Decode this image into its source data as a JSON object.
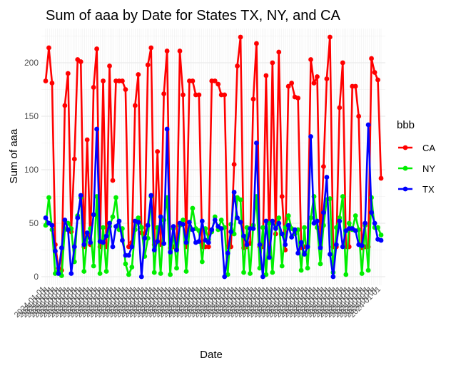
{
  "chart_data": {
    "type": "line",
    "title": "Sum of aaa by Date for States TX, NY, and CA",
    "xlabel": "Date",
    "ylabel": "Sum of aaa",
    "ylim": [
      -8,
      232
    ],
    "yticks": [
      0,
      50,
      100,
      150,
      200
    ],
    "x_tick_text": "2024-01-01",
    "x_count": 173,
    "grid": true,
    "legend": {
      "title": "bbb",
      "position": "right"
    },
    "colors": {
      "CA": "#ff0000",
      "NY": "#00ee00",
      "TX": "#0000ff"
    },
    "series": [
      {
        "name": "CA",
        "values": [
          183,
          214,
          181,
          30,
          8,
          6,
          160,
          190,
          42,
          110,
          203,
          201,
          28,
          128,
          30,
          177,
          213,
          28,
          183,
          28,
          197,
          90,
          183,
          183,
          183,
          175,
          28,
          32,
          160,
          189,
          41,
          40,
          198,
          214,
          30,
          117,
          30,
          171,
          211,
          27,
          28,
          28,
          211,
          170,
          28,
          183,
          183,
          170,
          170,
          28,
          28,
          28,
          183,
          183,
          180,
          170,
          170,
          28,
          28,
          105,
          197,
          224,
          27,
          28,
          31,
          166,
          218,
          28,
          28,
          188,
          28,
          200,
          40,
          210,
          75,
          25,
          178,
          181,
          168,
          167,
          27,
          28,
          28,
          203,
          181,
          187,
          28,
          103,
          185,
          224,
          28,
          28,
          158,
          200,
          28,
          28,
          178,
          178,
          150,
          27,
          28,
          28,
          204,
          191,
          184,
          92
        ]
      },
      {
        "name": "NY",
        "values": [
          48,
          74,
          44,
          3,
          5,
          1,
          44,
          50,
          45,
          14,
          57,
          74,
          5,
          37,
          45,
          10,
          75,
          3,
          46,
          5,
          47,
          56,
          74,
          44,
          45,
          12,
          2,
          9,
          44,
          55,
          46,
          19,
          36,
          75,
          4,
          46,
          3,
          53,
          74,
          2,
          45,
          8,
          48,
          53,
          5,
          44,
          64,
          45,
          43,
          14,
          45,
          35,
          42,
          56,
          44,
          53,
          46,
          2,
          49,
          40,
          74,
          72,
          4,
          46,
          3,
          48,
          75,
          8,
          46,
          2,
          50,
          4,
          46,
          55,
          10,
          46,
          57,
          45,
          40,
          44,
          6,
          46,
          8,
          55,
          75,
          46,
          12,
          48,
          72,
          73,
          4,
          46,
          55,
          75,
          2,
          50,
          44,
          57,
          44,
          3,
          48,
          6,
          74,
          46,
          46,
          39
        ]
      },
      {
        "name": "TX",
        "values": [
          55,
          50,
          48,
          24,
          3,
          27,
          53,
          44,
          3,
          28,
          55,
          76,
          30,
          41,
          32,
          58,
          138,
          33,
          32,
          38,
          50,
          28,
          47,
          52,
          34,
          20,
          20,
          28,
          52,
          51,
          0,
          36,
          48,
          76,
          25,
          33,
          56,
          31,
          138,
          23,
          47,
          25,
          50,
          49,
          32,
          51,
          44,
          32,
          33,
          52,
          34,
          32,
          44,
          53,
          47,
          45,
          0,
          22,
          42,
          79,
          55,
          51,
          38,
          30,
          45,
          45,
          125,
          30,
          0,
          52,
          18,
          52,
          45,
          50,
          40,
          30,
          48,
          37,
          44,
          22,
          32,
          21,
          28,
          131,
          50,
          52,
          27,
          60,
          93,
          21,
          0,
          30,
          52,
          28,
          43,
          45,
          45,
          43,
          30,
          29,
          50,
          142,
          60,
          50,
          35,
          34
        ]
      }
    ]
  }
}
